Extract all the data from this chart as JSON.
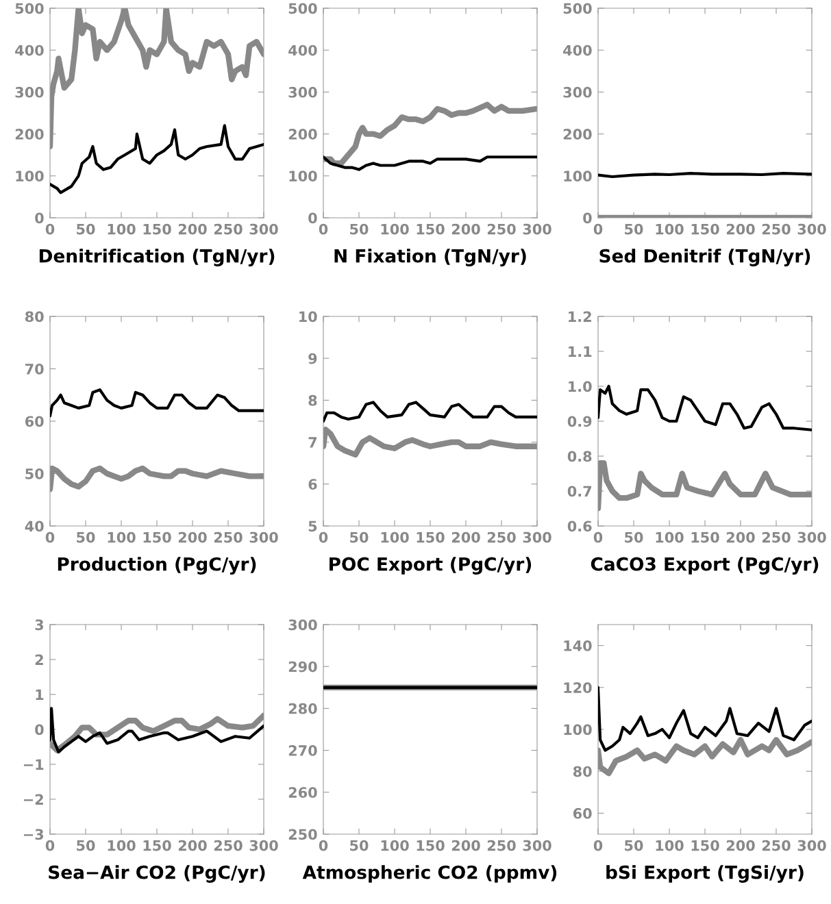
{
  "chart_data": [
    {
      "type": "line",
      "xlabel": "Denitrification (TgN/yr)",
      "xlim": [
        0,
        300
      ],
      "xticks": [
        0,
        50,
        100,
        150,
        200,
        250,
        300
      ],
      "ylim": [
        0,
        500
      ],
      "yticks": [
        0,
        100,
        200,
        300,
        400,
        500
      ],
      "series": [
        {
          "color": "#888888",
          "x": [
            0,
            2,
            5,
            10,
            12,
            20,
            30,
            35,
            40,
            45,
            50,
            60,
            65,
            70,
            80,
            90,
            100,
            105,
            110,
            120,
            130,
            135,
            140,
            150,
            160,
            163,
            170,
            180,
            190,
            195,
            200,
            210,
            220,
            230,
            240,
            250,
            255,
            260,
            270,
            275,
            280,
            290,
            300
          ],
          "values": [
            170,
            290,
            320,
            350,
            380,
            310,
            330,
            400,
            500,
            440,
            460,
            450,
            380,
            420,
            400,
            420,
            470,
            500,
            460,
            430,
            400,
            360,
            400,
            390,
            420,
            500,
            420,
            400,
            390,
            350,
            370,
            360,
            420,
            410,
            420,
            390,
            330,
            350,
            360,
            340,
            410,
            420,
            390
          ]
        },
        {
          "color": "#000000",
          "x": [
            0,
            10,
            15,
            25,
            30,
            40,
            45,
            55,
            60,
            65,
            75,
            85,
            95,
            105,
            120,
            122,
            130,
            140,
            150,
            160,
            170,
            175,
            180,
            190,
            200,
            210,
            220,
            240,
            245,
            250,
            260,
            270,
            280,
            290,
            300
          ],
          "values": [
            80,
            70,
            60,
            70,
            75,
            100,
            130,
            145,
            170,
            130,
            115,
            120,
            140,
            150,
            165,
            200,
            140,
            130,
            150,
            160,
            175,
            210,
            150,
            140,
            150,
            165,
            170,
            175,
            220,
            170,
            140,
            140,
            165,
            170,
            175
          ]
        }
      ]
    },
    {
      "type": "line",
      "xlabel": "N Fixation (TgN/yr)",
      "xlim": [
        0,
        300
      ],
      "xticks": [
        0,
        50,
        100,
        150,
        200,
        250,
        300
      ],
      "ylim": [
        0,
        500
      ],
      "yticks": [
        0,
        100,
        200,
        300,
        400,
        500
      ],
      "series": [
        {
          "color": "#888888",
          "x": [
            0,
            10,
            15,
            25,
            35,
            45,
            50,
            55,
            60,
            70,
            80,
            90,
            100,
            110,
            120,
            130,
            140,
            150,
            160,
            170,
            180,
            190,
            200,
            210,
            230,
            240,
            250,
            260,
            280,
            300
          ],
          "values": [
            140,
            140,
            130,
            130,
            150,
            170,
            200,
            215,
            200,
            200,
            195,
            210,
            220,
            240,
            235,
            235,
            230,
            240,
            260,
            255,
            245,
            250,
            250,
            255,
            270,
            255,
            265,
            255,
            255,
            260
          ]
        },
        {
          "color": "#000000",
          "x": [
            0,
            10,
            20,
            30,
            40,
            50,
            60,
            70,
            80,
            100,
            110,
            120,
            140,
            150,
            160,
            180,
            200,
            220,
            230,
            250,
            270,
            300
          ],
          "values": [
            145,
            130,
            125,
            120,
            120,
            115,
            125,
            130,
            125,
            125,
            130,
            135,
            135,
            130,
            140,
            140,
            140,
            135,
            145,
            145,
            145,
            145
          ]
        }
      ]
    },
    {
      "type": "line",
      "xlabel": "Sed Denitrif (TgN/yr)",
      "xlim": [
        0,
        300
      ],
      "xticks": [
        0,
        50,
        100,
        150,
        200,
        250,
        300
      ],
      "ylim": [
        0,
        500
      ],
      "yticks": [
        0,
        100,
        200,
        300,
        400,
        500
      ],
      "series": [
        {
          "color": "#888888",
          "x": [
            0,
            100,
            200,
            300
          ],
          "values": [
            0,
            0,
            0,
            0
          ]
        },
        {
          "color": "#000000",
          "x": [
            0,
            20,
            50,
            80,
            100,
            130,
            160,
            200,
            230,
            260,
            300
          ],
          "values": [
            102,
            98,
            102,
            104,
            103,
            106,
            104,
            104,
            103,
            106,
            104
          ]
        }
      ]
    },
    {
      "type": "line",
      "xlabel": "Production (PgC/yr)",
      "xlim": [
        0,
        300
      ],
      "xticks": [
        0,
        50,
        100,
        150,
        200,
        250,
        300
      ],
      "ylim": [
        40,
        80
      ],
      "yticks": [
        40,
        50,
        60,
        70,
        80
      ],
      "series": [
        {
          "color": "#888888",
          "x": [
            0,
            3,
            10,
            20,
            30,
            40,
            50,
            60,
            70,
            80,
            90,
            100,
            110,
            120,
            130,
            140,
            160,
            170,
            180,
            190,
            200,
            220,
            240,
            260,
            280,
            300
          ],
          "values": [
            47,
            51,
            50.5,
            49,
            48,
            47.5,
            48.5,
            50.5,
            51,
            50,
            49.5,
            49,
            49.5,
            50.5,
            51,
            50,
            49.5,
            49.5,
            50.5,
            50.5,
            50,
            49.5,
            50.5,
            50,
            49.5,
            49.5
          ]
        },
        {
          "color": "#000000",
          "x": [
            0,
            3,
            10,
            15,
            20,
            30,
            40,
            55,
            60,
            70,
            80,
            90,
            100,
            115,
            120,
            130,
            140,
            150,
            165,
            175,
            185,
            195,
            205,
            220,
            235,
            245,
            255,
            265,
            285,
            300
          ],
          "values": [
            61,
            63,
            64,
            65,
            63.5,
            63,
            62.5,
            63,
            65.5,
            66,
            64,
            63,
            62.5,
            63,
            65.5,
            65,
            63.5,
            62.5,
            62.5,
            65,
            65,
            63.5,
            62.5,
            62.5,
            65,
            64.5,
            63,
            62,
            62,
            62
          ]
        }
      ]
    },
    {
      "type": "line",
      "xlabel": "POC Export (PgC/yr)",
      "xlim": [
        0,
        300
      ],
      "xticks": [
        0,
        50,
        100,
        150,
        200,
        250,
        300
      ],
      "ylim": [
        5,
        10
      ],
      "yticks": [
        5,
        6,
        7,
        8,
        9,
        10
      ],
      "series": [
        {
          "color": "#888888",
          "x": [
            0,
            3,
            10,
            20,
            30,
            45,
            55,
            65,
            75,
            85,
            100,
            115,
            125,
            140,
            150,
            165,
            180,
            190,
            200,
            220,
            235,
            250,
            270,
            300
          ],
          "values": [
            6.9,
            7.3,
            7.2,
            6.9,
            6.8,
            6.7,
            7.0,
            7.1,
            7.0,
            6.9,
            6.85,
            7.0,
            7.05,
            6.95,
            6.9,
            6.95,
            7.0,
            7.0,
            6.9,
            6.9,
            7.0,
            6.95,
            6.9,
            6.9
          ]
        },
        {
          "color": "#000000",
          "x": [
            0,
            5,
            15,
            25,
            35,
            50,
            60,
            70,
            80,
            90,
            110,
            120,
            130,
            140,
            150,
            170,
            180,
            190,
            200,
            210,
            230,
            240,
            250,
            260,
            270,
            300
          ],
          "values": [
            7.5,
            7.7,
            7.7,
            7.6,
            7.55,
            7.6,
            7.9,
            7.95,
            7.75,
            7.6,
            7.65,
            7.9,
            7.95,
            7.8,
            7.65,
            7.6,
            7.85,
            7.9,
            7.75,
            7.6,
            7.6,
            7.85,
            7.85,
            7.7,
            7.6,
            7.6
          ]
        }
      ]
    },
    {
      "type": "line",
      "xlabel": "CaCO3 Export (PgC/yr)",
      "xlim": [
        0,
        300
      ],
      "xticks": [
        0,
        50,
        100,
        150,
        200,
        250,
        300
      ],
      "ylim": [
        0.6,
        1.2
      ],
      "yticks": [
        0.6,
        0.7,
        0.8,
        0.9,
        {
          "value": 1,
          "label": "1.0"
        },
        1.1,
        1.2
      ],
      "series": [
        {
          "color": "#888888",
          "x": [
            0,
            3,
            8,
            12,
            20,
            30,
            40,
            55,
            60,
            65,
            75,
            90,
            110,
            118,
            125,
            140,
            160,
            178,
            185,
            200,
            220,
            235,
            245,
            270,
            300
          ],
          "values": [
            0.65,
            0.78,
            0.78,
            0.73,
            0.7,
            0.68,
            0.68,
            0.69,
            0.75,
            0.73,
            0.71,
            0.69,
            0.69,
            0.75,
            0.71,
            0.7,
            0.69,
            0.75,
            0.72,
            0.69,
            0.69,
            0.75,
            0.71,
            0.69,
            0.69
          ]
        },
        {
          "color": "#000000",
          "x": [
            0,
            3,
            10,
            15,
            20,
            30,
            40,
            55,
            60,
            70,
            80,
            90,
            100,
            110,
            120,
            130,
            140,
            150,
            165,
            175,
            185,
            195,
            205,
            215,
            230,
            240,
            250,
            260,
            275,
            300
          ],
          "values": [
            0.91,
            0.99,
            0.98,
            1.0,
            0.95,
            0.93,
            0.92,
            0.93,
            0.99,
            0.99,
            0.96,
            0.91,
            0.9,
            0.9,
            0.97,
            0.96,
            0.93,
            0.9,
            0.89,
            0.95,
            0.95,
            0.92,
            0.88,
            0.885,
            0.94,
            0.95,
            0.92,
            0.88,
            0.88,
            0.875
          ]
        }
      ]
    },
    {
      "type": "line",
      "xlabel": "Sea−Air CO2 (PgC/yr)",
      "xlim": [
        0,
        300
      ],
      "xticks": [
        0,
        50,
        100,
        150,
        200,
        250,
        300
      ],
      "ylim": [
        -3,
        3
      ],
      "yticks": [
        {
          "value": -3,
          "label": "−3"
        },
        {
          "value": -2,
          "label": "−2"
        },
        {
          "value": -1,
          "label": "−1"
        },
        0,
        1,
        2,
        3
      ],
      "series": [
        {
          "color": "#888888",
          "x": [
            0,
            10,
            20,
            35,
            45,
            55,
            65,
            80,
            95,
            110,
            120,
            130,
            145,
            160,
            175,
            185,
            195,
            210,
            225,
            235,
            250,
            270,
            285,
            300
          ],
          "values": [
            -0.4,
            -0.6,
            -0.45,
            -0.2,
            0.05,
            0.05,
            -0.15,
            -0.15,
            0.05,
            0.25,
            0.25,
            0.05,
            -0.05,
            0.1,
            0.25,
            0.25,
            0.05,
            0,
            0.15,
            0.3,
            0.1,
            0.05,
            0.1,
            0.4
          ]
        },
        {
          "color": "#000000",
          "x": [
            0,
            2,
            5,
            12,
            20,
            30,
            40,
            50,
            60,
            70,
            80,
            95,
            110,
            115,
            125,
            140,
            160,
            165,
            180,
            200,
            220,
            240,
            260,
            280,
            300
          ],
          "values": [
            -0.3,
            0.6,
            -0.3,
            -0.65,
            -0.5,
            -0.35,
            -0.2,
            -0.35,
            -0.2,
            -0.1,
            -0.4,
            -0.3,
            -0.05,
            -0.05,
            -0.3,
            -0.2,
            -0.1,
            -0.1,
            -0.3,
            -0.2,
            -0.05,
            -0.35,
            -0.2,
            -0.25,
            0.1
          ]
        }
      ]
    },
    {
      "type": "line",
      "xlabel": "Atmospheric CO2 (ppmv)",
      "xlim": [
        0,
        300
      ],
      "xticks": [
        0,
        50,
        100,
        150,
        200,
        250,
        300
      ],
      "ylim": [
        250,
        300
      ],
      "yticks": [
        250,
        260,
        270,
        280,
        290,
        300
      ],
      "series": [
        {
          "color": "#888888",
          "x": [
            0,
            300
          ],
          "values": [
            285,
            285
          ]
        },
        {
          "color": "#000000",
          "x": [
            0,
            300
          ],
          "values": [
            285,
            285
          ]
        }
      ]
    },
    {
      "type": "line",
      "xlabel": "bSi Export (TgSi/yr)",
      "xlim": [
        0,
        300
      ],
      "xticks": [
        0,
        50,
        100,
        150,
        200,
        250,
        300
      ],
      "ylim": [
        50,
        150
      ],
      "yticks": [
        60,
        80,
        100,
        120,
        140
      ],
      "series": [
        {
          "color": "#888888",
          "x": [
            0,
            3,
            15,
            25,
            40,
            55,
            65,
            80,
            95,
            110,
            120,
            135,
            150,
            160,
            175,
            190,
            200,
            210,
            230,
            240,
            250,
            265,
            280,
            290,
            300
          ],
          "values": [
            90,
            82,
            79,
            85,
            87,
            90,
            86,
            88,
            85,
            92,
            90,
            88,
            92,
            87,
            93,
            89,
            95,
            88,
            92,
            90,
            95,
            88,
            90,
            92,
            94
          ]
        },
        {
          "color": "#000000",
          "x": [
            0,
            3,
            10,
            20,
            30,
            35,
            45,
            55,
            60,
            70,
            80,
            90,
            100,
            110,
            120,
            130,
            140,
            150,
            165,
            180,
            185,
            195,
            210,
            225,
            240,
            250,
            260,
            275,
            290,
            300
          ],
          "values": [
            120,
            95,
            90,
            92,
            95,
            101,
            98,
            103,
            106,
            97,
            98,
            100,
            96,
            103,
            109,
            98,
            96,
            101,
            97,
            104,
            110,
            98,
            97,
            103,
            99,
            110,
            97,
            95,
            102,
            104
          ]
        }
      ]
    }
  ]
}
